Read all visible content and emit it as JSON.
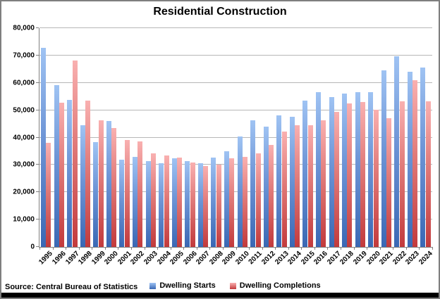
{
  "title": "Residential Construction",
  "source_note": "Source:  Central Bureau of Statistics",
  "colors": {
    "starts_top": "#9fc3f3",
    "starts_bottom": "#3a68b4",
    "completions_top": "#f9b0b0",
    "completions_bottom": "#c23a3c",
    "gridline": "#b7b7b7",
    "axis": "#808080"
  },
  "y_axis": {
    "ticks": [
      "0",
      "10,000",
      "20,000",
      "30,000",
      "40,000",
      "50,000",
      "60,000",
      "70,000",
      "80,000"
    ]
  },
  "chart_data": {
    "type": "bar",
    "title": "Residential Construction",
    "categories": [
      "1995",
      "1996",
      "1997",
      "1998",
      "1999",
      "2000",
      "2001",
      "2002",
      "2003",
      "2004",
      "2005",
      "2006",
      "2007",
      "2008",
      "2009",
      "2010",
      "2011",
      "2012",
      "2013",
      "2014",
      "2015",
      "2016",
      "2017",
      "2018",
      "2019",
      "2020",
      "2021",
      "2022",
      "2023",
      "2024"
    ],
    "series": [
      {
        "name": "Dwelling Starts",
        "values": [
          72900,
          59300,
          53700,
          44400,
          38300,
          46100,
          31900,
          33000,
          31400,
          30600,
          32400,
          31400,
          30600,
          32600,
          34900,
          40300,
          46400,
          43900,
          48000,
          47600,
          53500,
          56600,
          54800,
          56000,
          56500,
          56500,
          64500,
          69600,
          64100,
          65600
        ]
      },
      {
        "name": "Dwelling Completions",
        "values": [
          38200,
          52700,
          68300,
          53600,
          46400,
          43600,
          39000,
          38500,
          34300,
          33400,
          32700,
          31000,
          29700,
          30100,
          32400,
          33000,
          34300,
          37300,
          42200,
          44500,
          44600,
          46400,
          49500,
          52500,
          53000,
          50300,
          47000,
          53200,
          61000,
          53200
        ]
      }
    ],
    "xlabel": "",
    "ylabel": "",
    "ylim": [
      0,
      80000
    ],
    "y_step": 10000,
    "grid": true,
    "legend_position": "bottom"
  }
}
